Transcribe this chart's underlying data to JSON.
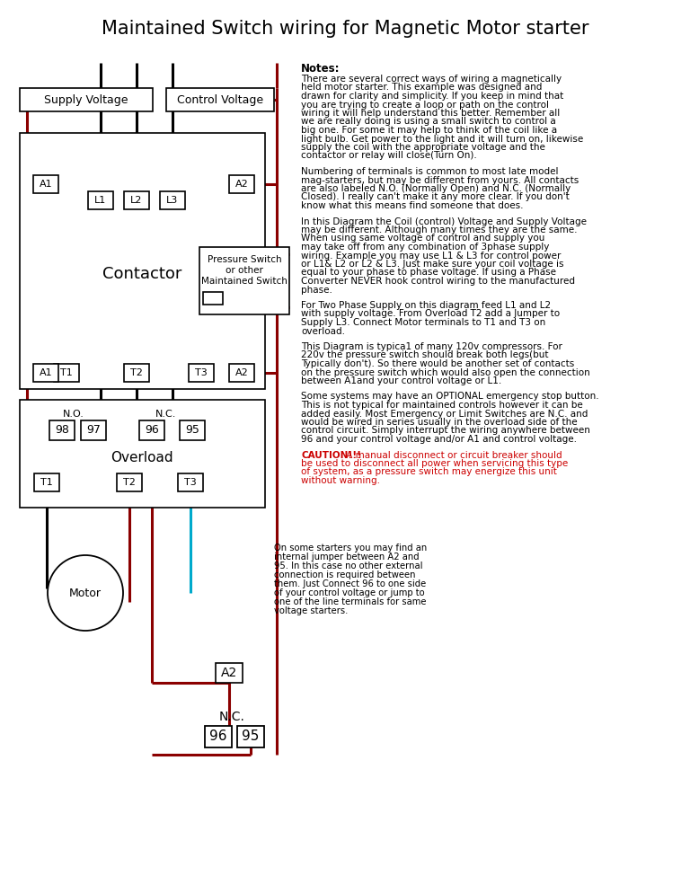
{
  "title": "Maintained Switch wiring for Magnetic Motor starter",
  "bg_color": "#ffffff",
  "notes_paragraphs": [
    "There are several correct ways of wiring a magnetically\nheld motor starter. This example was designed and\ndrawn for clarity and simplicity. If you keep in mind that\nyou are trying to create a loop or path on the control\nwiring it will help understand this better. Remember all\nwe are really doing is using a small switch to control a\nbig one. For some it may help to think of the coil like a\nlight bulb. Get power to the light and it will turn on, likewise\nsupply the coil with the appropriate voltage and the\ncontactor or relay will close(Turn On).",
    "Numbering of terminals is common to most late model\nmag-starters, but may be different from yours. All contacts\nare also labeled N.O. (Normally Open) and N.C. (Normally\nClosed). I really can't make it any more clear. If you don't\nknow what this means find someone that does.",
    "In this Diagram the Coil (control) Voltage and Supply Voltage\nmay be different. Although many times they are the same.\nWhen using same voltage of control and supply you\nmay take off from any combination of 3phase supply\nwiring. Example you may use L1 & L3 for control power\nor L1& L2 or L2 & L3. Just make sure your coil voltage is\nequal to your phase to phase voltage. If using a Phase\nConverter NEVER hook control wiring to the manufactured\nphase.",
    "For Two Phase Supply on this diagram feed L1 and L2\nwith supply voltage. From Overload T2 add a Jumper to\nSupply L3. Connect Motor terminals to T1 and T3 on\noverload.",
    "This Diagram is typica1 of many 120v compressors. For\n220v the pressure switch should break both legs(but\nTypically don't). So there would be another set of contacts\non the pressure switch which would also open the connection\nbetween A1and your control voltage or L1.",
    "Some systems may have an OPTIONAL emergency stop button.\nThis is not typical for maintained controls however it can be\nadded easily. Most Emergency or Limit Switches are N.C. and\nwould be wired in series usually in the overload side of the\ncontrol circuit. Simply interrupt the wiring anywhere between\n96 and your control voltage and/or A1 and control voltage.",
    "CAUTION!!! A manual disconnect or circuit breaker should\nbe used to disconnect all power when servicing this type\nof system, as a pressure switch may energize this unit\nwithout warning."
  ],
  "annotation_text": "On some starters you may find an\ninternal jumper between A2 and\n95. In this case no other external\nconnection is required between\nthem. Just Connect 96 to one side\nof your control voltage or jump to\none of the line terminals for same\nvoltage starters.",
  "black": "#000000",
  "dark_red": "#8B0000",
  "cyan": "#00AACC",
  "caution_red": "#CC0000",
  "gray_fill": "#E8E8E8"
}
